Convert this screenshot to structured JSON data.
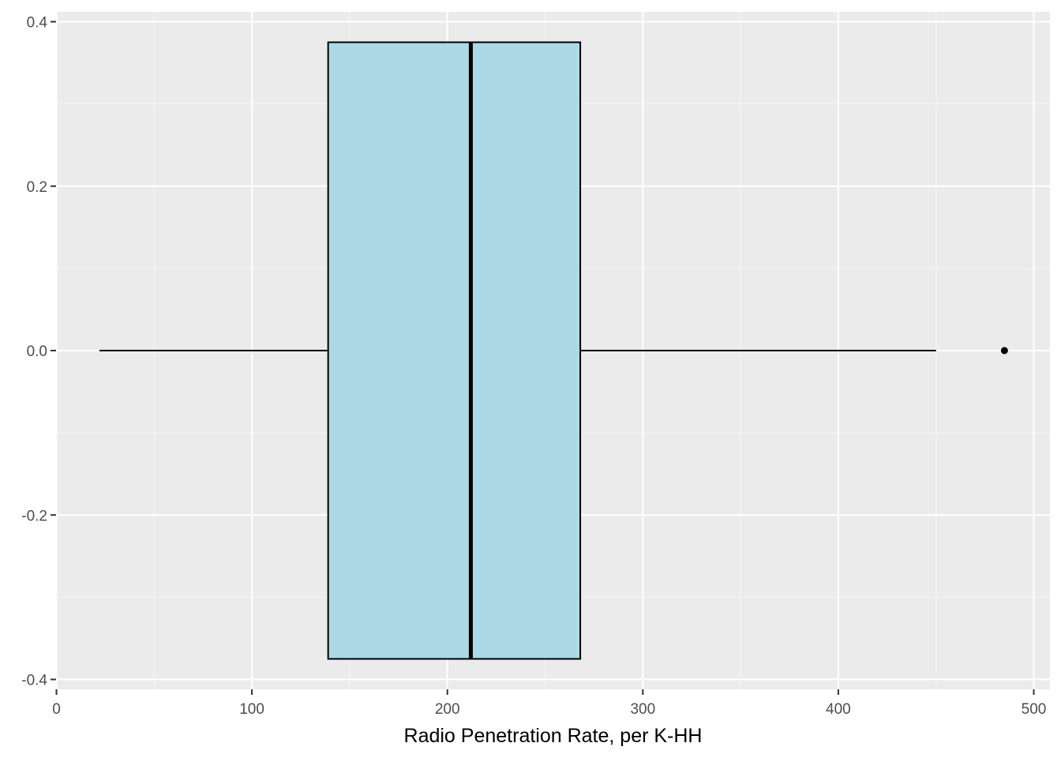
{
  "chart_data": {
    "type": "boxplot",
    "orientation": "horizontal",
    "title": "",
    "xlabel": "Radio Penetration Rate, per K-HH",
    "ylabel": "",
    "xlim": [
      0,
      505
    ],
    "ylim": [
      -0.4,
      0.42
    ],
    "x_ticks": [
      0,
      100,
      200,
      300,
      400,
      500
    ],
    "x_tick_labels": [
      "0",
      "100",
      "200",
      "300",
      "400",
      "500"
    ],
    "y_ticks": [
      0.4,
      0.2,
      0.0,
      -0.2,
      -0.4
    ],
    "y_tick_labels": [
      "0.4",
      "0.2",
      "0.0",
      "-0.2",
      "-0.4"
    ],
    "grid": true,
    "box": {
      "lower_whisker": 22,
      "q1": 139,
      "median": 212,
      "q3": 268,
      "upper_whisker": 450,
      "outliers": [
        485
      ],
      "y_center": 0.0,
      "half_width": 0.375
    },
    "colors": {
      "box_fill": "#add8e6",
      "box_line": "#000000",
      "panel_bg": "#ebebeb",
      "grid": "#ffffff"
    }
  }
}
